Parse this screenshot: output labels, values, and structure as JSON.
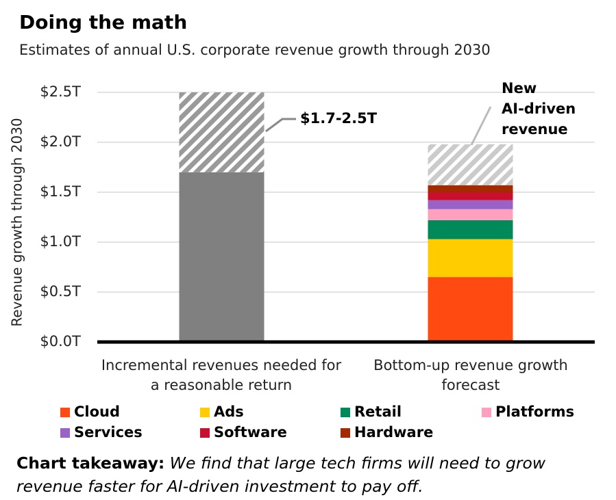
{
  "chart_data": {
    "type": "bar",
    "stacked": true,
    "title": "Doing the math",
    "subtitle": "Estimates of annual U.S. corporate revenue growth through 2030",
    "y_label": "Revenue growth through 2030",
    "categories": [
      "Incremental revenues needed for a reasonable return",
      "Bottom-up revenue growth forecast"
    ],
    "series": [
      {
        "color": "#808080",
        "values": [
          1.7,
          null
        ]
      },
      {
        "name": "Cloud",
        "color": "#ff4a12",
        "values": [
          null,
          0.65
        ]
      },
      {
        "name": "Ads",
        "color": "#ffcc00",
        "values": [
          null,
          0.38
        ]
      },
      {
        "name": "Retail",
        "color": "#008a5a",
        "values": [
          null,
          0.19
        ]
      },
      {
        "name": "Platforms",
        "color": "#ffa0be",
        "values": [
          null,
          0.11
        ]
      },
      {
        "name": "Services",
        "color": "#9a62c6",
        "values": [
          null,
          0.09
        ]
      },
      {
        "name": "Software",
        "color": "#c8102e",
        "values": [
          null,
          0.08
        ]
      },
      {
        "name": "Hardware",
        "color": "#a62a00",
        "values": [
          null,
          0.07
        ]
      },
      {
        "pattern": "hatch",
        "color": "#9a9a9a",
        "values": [
          0.8,
          null
        ]
      },
      {
        "pattern": "hatch",
        "color": "#cbcbcb",
        "values": [
          null,
          0.41
        ]
      }
    ],
    "ylim": [
      0,
      2.5
    ],
    "yticks": [
      {
        "value": 0,
        "label": "$0.0T"
      },
      {
        "value": 0.5,
        "label": "$0.5T"
      },
      {
        "value": 1,
        "label": "$1.0T"
      },
      {
        "value": 1.5,
        "label": "$1.5T"
      },
      {
        "value": 2,
        "label": "$2.0T"
      },
      {
        "value": 2.5,
        "label": "$2.5T"
      }
    ],
    "grid": true,
    "annotations": [
      {
        "text": "$1.7-2.5T"
      },
      {
        "lines": [
          "New",
          "AI-driven",
          "revenue"
        ]
      }
    ]
  },
  "footer": {
    "label": "Chart takeaway:",
    "text": "We find that large tech firms will need to grow revenue faster for AI-driven investment to pay off."
  }
}
